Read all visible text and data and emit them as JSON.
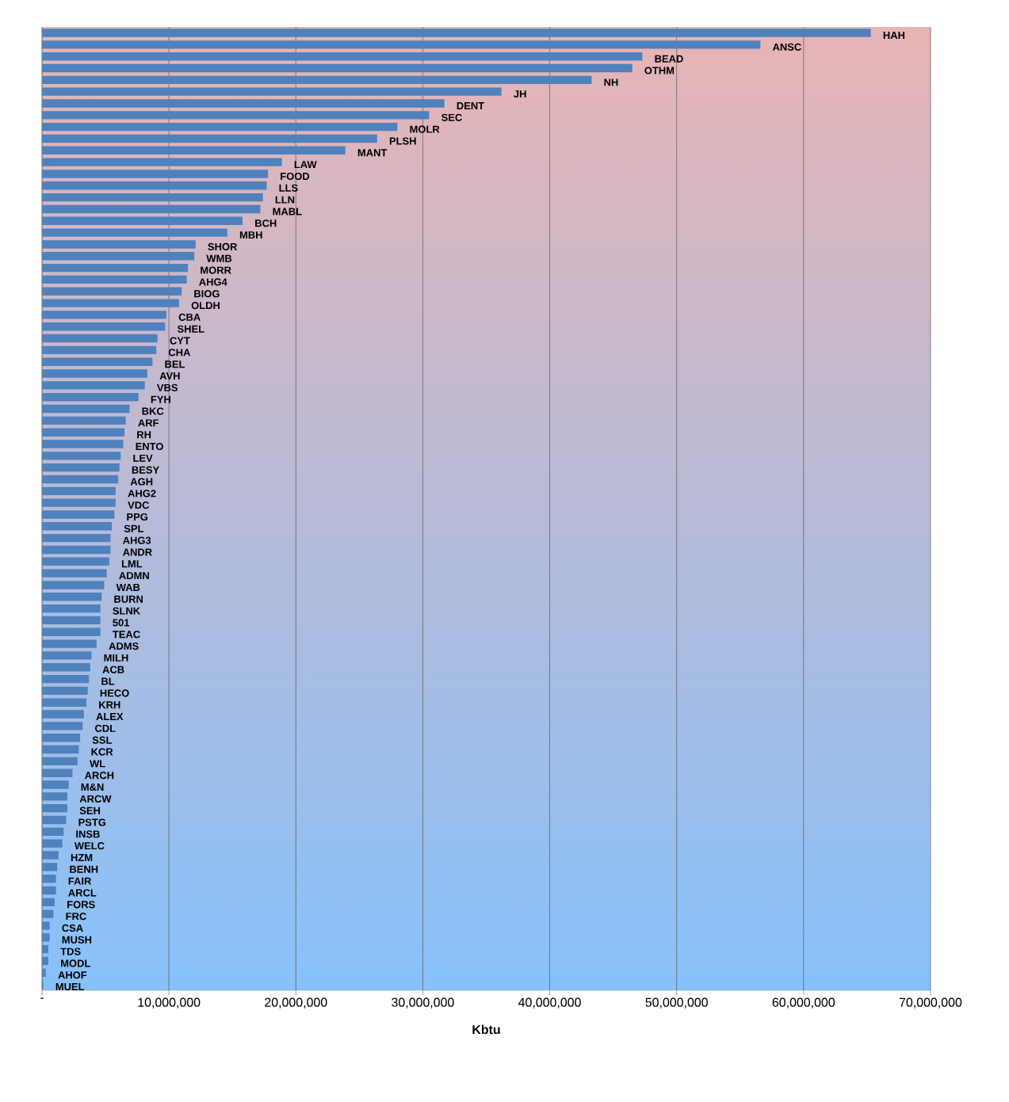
{
  "chart_data": {
    "type": "bar",
    "orientation": "horizontal",
    "xlabel": "Kbtu",
    "color": "#4f81bd",
    "grid": "x",
    "xlim": [
      0,
      70000000
    ],
    "xticks": [
      {
        "value": 0,
        "label": "-"
      },
      {
        "value": 10000000,
        "label": "10,000,000"
      },
      {
        "value": 20000000,
        "label": "20,000,000"
      },
      {
        "value": 30000000,
        "label": "30,000,000"
      },
      {
        "value": 40000000,
        "label": "40,000,000"
      },
      {
        "value": 50000000,
        "label": "50,000,000"
      },
      {
        "value": 60000000,
        "label": "60,000,000"
      },
      {
        "value": 70000000,
        "label": "70,000,000"
      }
    ],
    "categories": [
      "HAH",
      "ANSC",
      "BEAD",
      "OTHM",
      "NH",
      "JH",
      "DENT",
      "SEC",
      "MOLR",
      "PLSH",
      "MANT",
      "LAW",
      "FOOD",
      "LLS",
      "LLN",
      "MABL",
      "BCH",
      "MBH",
      "SHOR",
      "WMB",
      "MORR",
      "AHG4",
      "BIOG",
      "OLDH",
      "CBA",
      "SHEL",
      "CYT",
      "CHA",
      "BEL",
      "AVH",
      "VBS",
      "FYH",
      "BKC",
      "ARF",
      "RH",
      "ENTO",
      "LEV",
      "BESY",
      "AGH",
      "AHG2",
      "VDC",
      "PPG",
      "SPL",
      "AHG3",
      "ANDR",
      "LML",
      "ADMN",
      "WAB",
      "BURN",
      "SLNK",
      "501",
      "TEAC",
      "ADMS",
      "MILH",
      "ACB",
      "BL",
      "HECO",
      "KRH",
      "ALEX",
      "CDL",
      "SSL",
      "KCR",
      "WL",
      "ARCH",
      "M&N",
      "ARCW",
      "SEH",
      "PSTG",
      "INSB",
      "WELC",
      "HZM",
      "BENH",
      "FAIR",
      "ARCL",
      "FORS",
      "FRC",
      "CSA",
      "MUSH",
      "TDS",
      "MODL",
      "AHOF",
      "MUEL"
    ],
    "values": [
      65300000,
      56600000,
      47300000,
      46500000,
      43300000,
      36200000,
      31700000,
      30500000,
      28000000,
      26400000,
      23900000,
      18900000,
      17800000,
      17700000,
      17400000,
      17200000,
      15800000,
      14600000,
      12100000,
      12000000,
      11500000,
      11400000,
      11000000,
      10800000,
      9800000,
      9700000,
      9100000,
      9000000,
      8700000,
      8300000,
      8100000,
      7600000,
      6900000,
      6600000,
      6500000,
      6400000,
      6200000,
      6100000,
      6000000,
      5800000,
      5800000,
      5700000,
      5500000,
      5400000,
      5400000,
      5300000,
      5100000,
      4900000,
      4700000,
      4600000,
      4600000,
      4600000,
      4300000,
      3900000,
      3800000,
      3700000,
      3600000,
      3500000,
      3300000,
      3200000,
      3000000,
      2900000,
      2800000,
      2400000,
      2100000,
      2000000,
      2000000,
      1900000,
      1700000,
      1600000,
      1300000,
      1200000,
      1100000,
      1100000,
      1000000,
      900000,
      600000,
      600000,
      500000,
      500000,
      300000,
      100000
    ]
  }
}
